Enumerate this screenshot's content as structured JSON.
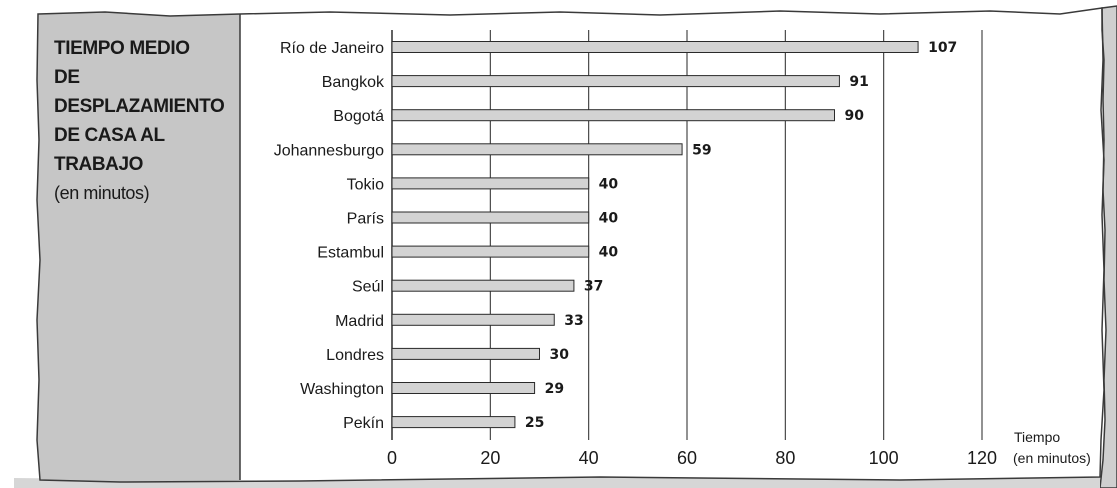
{
  "chart_data": {
    "type": "bar",
    "orientation": "horizontal",
    "title_lines": [
      "TIEMPO MEDIO",
      "DE DESPLAZAMIENTO",
      "DE CASA AL TRABAJO"
    ],
    "subtitle": "(en minutos)",
    "categories": [
      "Río de Janeiro",
      "Bangkok",
      "Bogotá",
      "Johannesburgo",
      "Tokio",
      "París",
      "Estambul",
      "Seúl",
      "Madrid",
      "Londres",
      "Washington",
      "Pekín"
    ],
    "values": [
      107,
      91,
      90,
      59,
      40,
      40,
      40,
      37,
      33,
      30,
      29,
      25
    ],
    "value_labels": [
      "107",
      "91",
      "90",
      "59",
      "40",
      "40",
      "40",
      "37",
      "33",
      "30",
      "29",
      "25"
    ],
    "x_ticks": [
      0,
      20,
      40,
      60,
      80,
      100,
      120
    ],
    "x_tick_labels": [
      "0",
      "20",
      "40",
      "60",
      "80",
      "100",
      "120"
    ],
    "xlabel_lines": [
      "Tiempo",
      "(en minutos)"
    ],
    "xlim": [
      0,
      120
    ],
    "grid": true,
    "colors": {
      "bar_fill": "#d3d3d3",
      "panel": "#c6c6c6",
      "frame": "#3a3a3a"
    }
  }
}
